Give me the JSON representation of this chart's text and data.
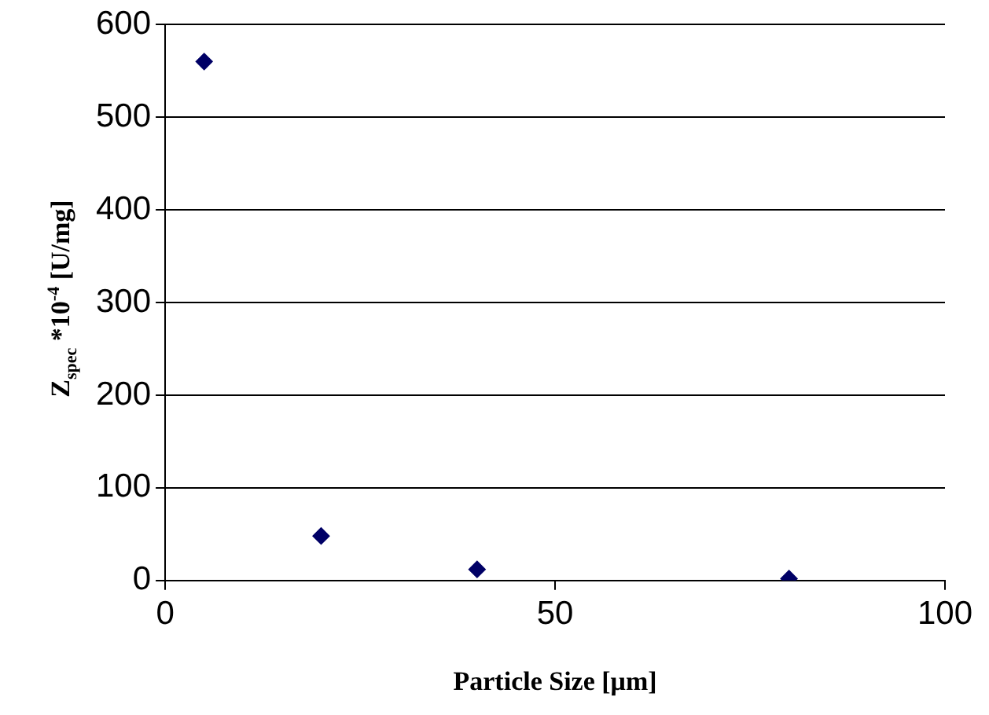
{
  "chart_data": {
    "type": "scatter",
    "xlabel": "Particle Size [μm]",
    "ylabel": "Z$_{spec}$ *10$^{-4}$ [U/mg]",
    "x": [
      5,
      20,
      40,
      80
    ],
    "series": [
      {
        "color": "#000066",
        "values": [
          560,
          48,
          12,
          2
        ]
      }
    ],
    "xlim": [
      0,
      100
    ],
    "xticks": [
      0,
      50,
      100
    ],
    "ylim": [
      0,
      600
    ],
    "yticks": [
      0,
      100,
      200,
      300,
      400,
      500,
      600
    ],
    "grid": "y",
    "legend": false,
    "marker": "diamond"
  }
}
